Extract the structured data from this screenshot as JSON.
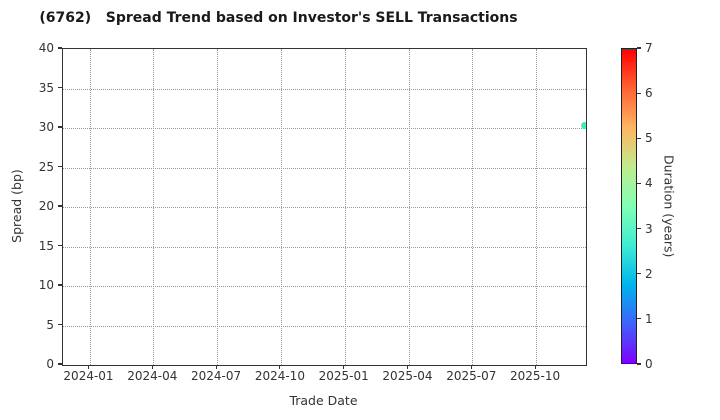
{
  "chart_data": {
    "type": "scatter",
    "title": "(6762)   Spread Trend based on Investor's SELL Transactions",
    "xlabel": "Trade Date",
    "ylabel": "Spread (bp)",
    "x_tick_labels": [
      "2024-01",
      "2024-04",
      "2024-07",
      "2024-10",
      "2025-01",
      "2025-04",
      "2025-07",
      "2025-10"
    ],
    "ylim": [
      0,
      40
    ],
    "y_ticks": [
      0,
      5,
      10,
      15,
      20,
      25,
      30,
      35,
      40
    ],
    "grid": "dotted",
    "points": [
      {
        "date": "2025-12-10",
        "spread_bp": 30.3,
        "duration_years": 3,
        "color": "#3beeb5"
      }
    ],
    "colorbar": {
      "label": "Duration (years)",
      "min": 0,
      "max": 7,
      "ticks": [
        0,
        1,
        2,
        3,
        4,
        5,
        6,
        7
      ],
      "colormap": "rainbow",
      "stops": [
        "#8000ff",
        "#4061fa",
        "#00b4ec",
        "#40ecd4",
        "#80ffb5",
        "#bfec8e",
        "#ffb461",
        "#ff6232",
        "#ff0000"
      ]
    },
    "colors": {
      "spine": "#333333",
      "grid": "#999999",
      "tick_label": "#333333",
      "title": "#1a1a1a",
      "background": "#ffffff"
    }
  }
}
